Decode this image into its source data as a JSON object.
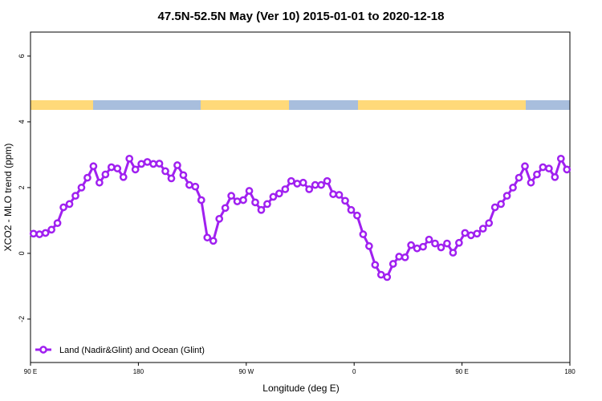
{
  "chart_data": {
    "type": "line",
    "title": "47.5N-52.5N May (Ver 10)   2015-01-01 to 2020-12-18",
    "x_label": "Longitude (deg E)",
    "y_label": "XCO2 - MLO trend (ppm)",
    "xlim": [
      90,
      540
    ],
    "ylim": [
      -3.32,
      6.73
    ],
    "xticks": [
      {
        "value": 90,
        "label": "90 E"
      },
      {
        "value": 180,
        "label": "180"
      },
      {
        "value": 270,
        "label": "90 W"
      },
      {
        "value": 360,
        "label": "0"
      },
      {
        "value": 450,
        "label": "90 E"
      },
      {
        "value": 540,
        "label": "180"
      }
    ],
    "yticks": [
      -2,
      0,
      2,
      4,
      6
    ],
    "legend": "bottom-left",
    "x": [
      92.5,
      97.5,
      102.5,
      107.5,
      112.5,
      117.5,
      122.5,
      127.5,
      132.5,
      137.5,
      142.5,
      147.5,
      152.5,
      157.5,
      162.5,
      167.5,
      172.5,
      177.5,
      182.5,
      187.5,
      192.5,
      197.5,
      202.5,
      207.5,
      212.5,
      217.5,
      222.5,
      227.5,
      232.5,
      237.5,
      242.5,
      247.5,
      252.5,
      257.5,
      262.5,
      267.5,
      272.5,
      277.5,
      282.5,
      287.5,
      292.5,
      297.5,
      302.5,
      307.5,
      312.5,
      317.5,
      322.5,
      327.5,
      332.5,
      337.5,
      342.5,
      347.5,
      352.5,
      357.5,
      362.5,
      367.5,
      372.5,
      377.5,
      382.5,
      387.5,
      392.5,
      397.5,
      402.5,
      407.5,
      412.5,
      417.5,
      422.5,
      427.5,
      432.5,
      437.5,
      442.5,
      447.5,
      452.5,
      457.5,
      462.5,
      467.5,
      472.5,
      477.5,
      482.5,
      487.5,
      492.5,
      497.5,
      502.5,
      507.5,
      512.5,
      517.5,
      522.5,
      527.5,
      532.5,
      537.5
    ],
    "series": [
      {
        "name": "Land (Nadir&Glint) and Ocean (Glint)",
        "color": "#a020f0",
        "values": [
          0.6,
          0.58,
          0.62,
          0.72,
          0.92,
          1.4,
          1.5,
          1.75,
          2.0,
          2.3,
          2.65,
          2.15,
          2.4,
          2.62,
          2.58,
          2.32,
          2.88,
          2.55,
          2.72,
          2.78,
          2.72,
          2.73,
          2.5,
          2.28,
          2.68,
          2.38,
          2.08,
          2.03,
          1.62,
          0.48,
          0.38,
          1.05,
          1.38,
          1.75,
          1.58,
          1.62,
          1.9,
          1.55,
          1.32,
          1.5,
          1.72,
          1.82,
          1.95,
          2.2,
          2.12,
          2.15,
          1.95,
          2.08,
          2.08,
          2.2,
          1.8,
          1.78,
          1.6,
          1.32,
          1.15,
          0.58,
          0.22,
          -0.35,
          -0.65,
          -0.72,
          -0.32,
          -0.1,
          -0.12,
          0.25,
          0.15,
          0.2,
          0.42,
          0.3,
          0.18,
          0.3,
          0.02,
          0.32,
          0.62,
          0.55,
          0.6,
          0.75,
          0.92,
          1.4,
          1.5,
          1.75,
          2.0,
          2.3,
          2.65,
          2.15,
          2.4,
          2.62,
          2.58,
          2.32,
          2.88,
          2.55
        ]
      }
    ]
  }
}
